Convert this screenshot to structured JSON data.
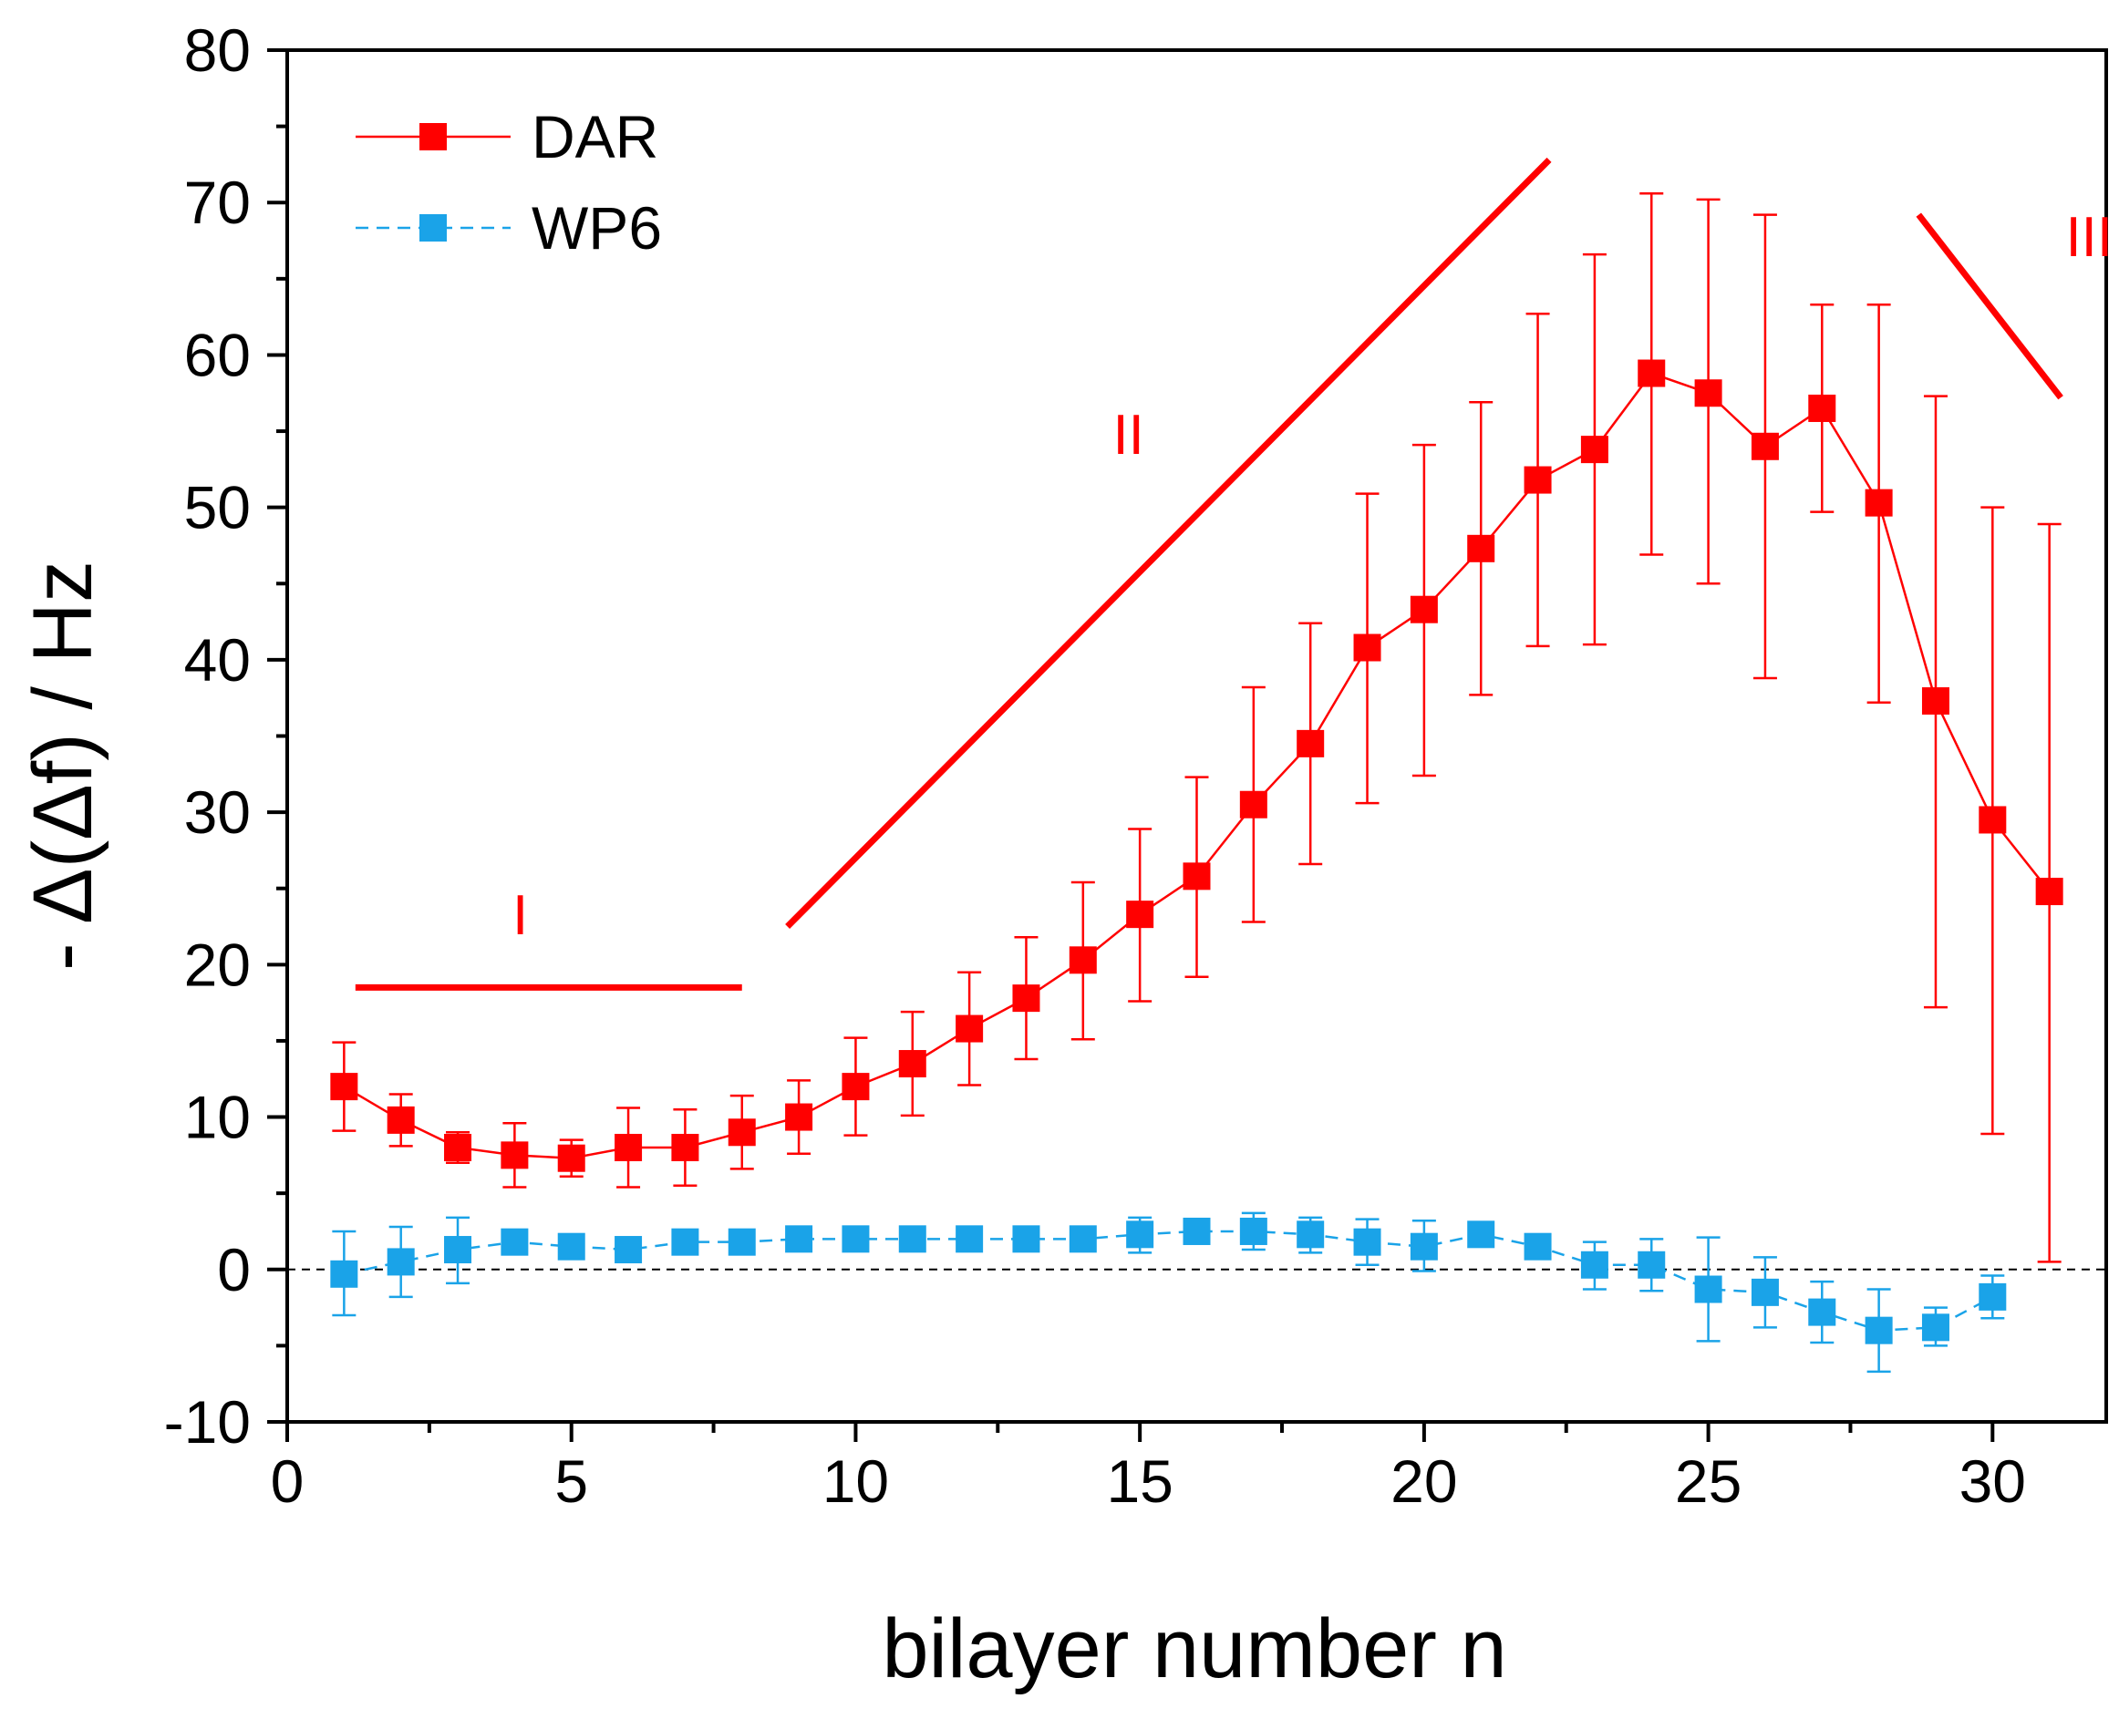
{
  "chart_data": {
    "type": "line",
    "title": "",
    "xlabel": "bilayer number n",
    "ylabel": "- Δ(Δf) / Hz",
    "xlim": [
      0,
      32
    ],
    "ylim": [
      -10,
      80
    ],
    "x_ticks": [
      0,
      5,
      10,
      15,
      20,
      25,
      30
    ],
    "x_tick_labels": [
      "0",
      "5",
      "10",
      "15",
      "20",
      "25",
      "30"
    ],
    "y_ticks": [
      -10,
      0,
      10,
      20,
      30,
      40,
      50,
      60,
      70,
      80
    ],
    "y_tick_labels": [
      "-10",
      "0",
      "10",
      "20",
      "30",
      "40",
      "50",
      "60",
      "70",
      "80"
    ],
    "legend_position": "top-left",
    "reference_line": {
      "y": 0,
      "style": "dashed",
      "color": "#000000"
    },
    "series": [
      {
        "name": "DAR",
        "color": "#ff0000",
        "line_style": "solid",
        "x": [
          1,
          2,
          3,
          4,
          5,
          6,
          7,
          8,
          9,
          10,
          11,
          12,
          13,
          14,
          15,
          16,
          17,
          18,
          19,
          20,
          21,
          22,
          23,
          24,
          25,
          26,
          27,
          28,
          29,
          30,
          31
        ],
        "y": [
          12.0,
          9.8,
          8.0,
          7.5,
          7.3,
          8.0,
          8.0,
          9.0,
          10.0,
          12.0,
          13.5,
          15.8,
          17.8,
          20.3,
          23.3,
          25.8,
          30.5,
          34.5,
          40.8,
          43.3,
          47.3,
          51.8,
          53.8,
          58.8,
          57.5,
          54.0,
          56.5,
          50.3,
          37.3,
          29.5,
          24.8
        ],
        "err_low": [
          9.1,
          8.1,
          7.0,
          5.4,
          6.1,
          5.4,
          5.5,
          6.6,
          7.6,
          8.8,
          10.1,
          12.1,
          13.8,
          15.1,
          17.6,
          19.2,
          22.8,
          26.6,
          30.6,
          32.4,
          37.7,
          40.9,
          41.0,
          46.9,
          45.0,
          38.8,
          49.7,
          37.2,
          17.2,
          8.9,
          0.5
        ],
        "err_high": [
          14.9,
          11.5,
          9.0,
          9.6,
          8.5,
          10.6,
          10.5,
          11.4,
          12.4,
          15.2,
          16.9,
          19.5,
          21.8,
          25.4,
          28.9,
          32.3,
          38.2,
          42.4,
          50.9,
          54.1,
          56.9,
          62.7,
          66.6,
          70.6,
          70.2,
          69.2,
          63.3,
          63.3,
          57.3,
          50.0,
          48.9
        ]
      },
      {
        "name": "WP6",
        "color": "#1aa3e8",
        "line_style": "dashed",
        "x": [
          1,
          2,
          3,
          4,
          5,
          6,
          7,
          8,
          9,
          10,
          11,
          12,
          13,
          14,
          15,
          16,
          17,
          18,
          19,
          20,
          21,
          22,
          23,
          24,
          25,
          26,
          27,
          28,
          29,
          30
        ],
        "y": [
          -0.3,
          0.5,
          1.3,
          1.8,
          1.5,
          1.3,
          1.8,
          1.8,
          2.0,
          2.0,
          2.0,
          2.0,
          2.0,
          2.0,
          2.3,
          2.5,
          2.5,
          2.3,
          1.8,
          1.5,
          2.3,
          1.5,
          0.3,
          0.3,
          -1.3,
          -1.5,
          -2.8,
          -4.0,
          -3.8,
          -1.8
        ],
        "err_low": [
          -3.0,
          -1.8,
          -0.9,
          1.8,
          1.5,
          1.3,
          1.8,
          1.8,
          2.0,
          2.0,
          2.0,
          2.0,
          2.0,
          2.0,
          1.1,
          2.5,
          1.3,
          1.1,
          0.3,
          -0.1,
          2.3,
          1.5,
          -1.3,
          -1.4,
          -4.7,
          -3.8,
          -4.8,
          -6.7,
          -5.0,
          -3.2
        ],
        "err_high": [
          2.5,
          2.8,
          3.4,
          1.8,
          1.5,
          1.3,
          1.8,
          1.8,
          2.0,
          2.0,
          2.0,
          2.0,
          2.0,
          2.0,
          3.4,
          2.5,
          3.7,
          3.4,
          3.3,
          3.2,
          2.3,
          1.5,
          1.8,
          2.0,
          2.1,
          0.8,
          -0.8,
          -1.3,
          -2.5,
          -0.4
        ]
      }
    ],
    "annotations": [
      {
        "label": "I",
        "color": "#ff0000",
        "line_x": [
          1.2,
          8.0
        ],
        "line_y": [
          18.5,
          18.5
        ],
        "text_x": 4.1,
        "text_y": 22.0
      },
      {
        "label": "II",
        "color": "#ff0000",
        "line_x": [
          8.8,
          22.2
        ],
        "line_y": [
          22.5,
          72.8
        ],
        "text_x": 14.8,
        "text_y": 53.5
      },
      {
        "label": "III",
        "color": "#ff0000",
        "line_x": [
          28.7,
          31.2
        ],
        "line_y": [
          69.2,
          57.2
        ],
        "text_x": 31.7,
        "text_y": 66.5
      }
    ]
  }
}
